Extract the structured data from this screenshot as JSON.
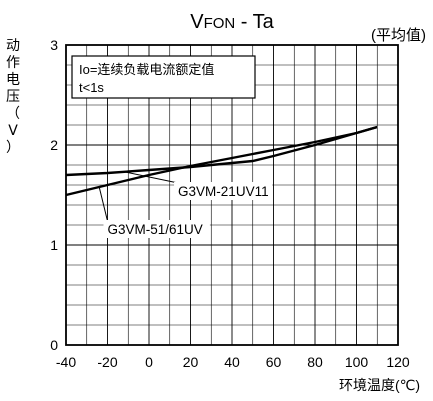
{
  "chart_data": {
    "type": "line",
    "title_parts": [
      "V",
      "FON",
      " - Ta"
    ],
    "subtitle": "(平均值)",
    "ylabel": [
      "动",
      "作",
      "电",
      "压",
      "（",
      "V",
      "）"
    ],
    "xlabel": "环境温度(℃)",
    "xlim": [
      -40,
      120
    ],
    "ylim": [
      0,
      3
    ],
    "grid": true,
    "x_ticks": [
      "-40",
      "-20",
      "0",
      "20",
      "40",
      "60",
      "80",
      "100",
      "120"
    ],
    "y_ticks": [
      "0",
      "1",
      "2",
      "3"
    ],
    "legend_lines": [
      "Io=连续负载电流额定值",
      "t<1s"
    ],
    "series": [
      {
        "name": "G3VM-21UV11",
        "x": [
          -40,
          -20,
          0,
          20,
          40,
          50,
          60,
          80,
          100,
          110
        ],
        "y": [
          1.7,
          1.72,
          1.75,
          1.78,
          1.82,
          1.84,
          1.89,
          2.0,
          2.12,
          2.18
        ]
      },
      {
        "name": "G3VM-51/61UV",
        "x": [
          -40,
          -20,
          0,
          20,
          40,
          60,
          80,
          100,
          110
        ],
        "y": [
          1.5,
          1.6,
          1.7,
          1.79,
          1.87,
          1.95,
          2.03,
          2.12,
          2.18
        ]
      }
    ],
    "annotations": [
      {
        "text": "G3VM-21UV11",
        "series": 0,
        "at_x": -12,
        "label_x": 14,
        "label_y": 1.5
      },
      {
        "text": "G3VM-51/61UV",
        "series": 1,
        "at_x": -24,
        "label_x": -20,
        "label_y": 1.12
      }
    ]
  }
}
